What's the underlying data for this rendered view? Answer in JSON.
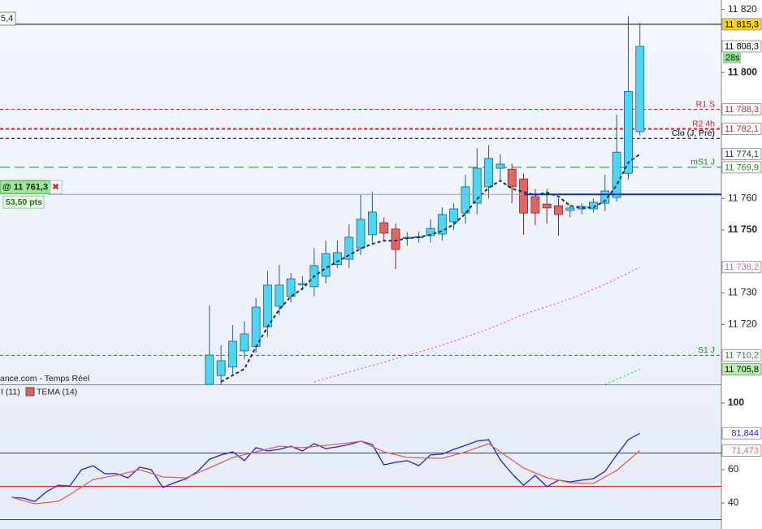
{
  "chart_data": [
    {
      "type": "candlestick",
      "corner_label": "5,4",
      "source": "ance.com - Temps Réel",
      "x": [
        17,
        18,
        19,
        20,
        21,
        22,
        23,
        24,
        25,
        26,
        27,
        28,
        29,
        30,
        31,
        32,
        33,
        34,
        35,
        36,
        37,
        38,
        39,
        40,
        41,
        42,
        43,
        44,
        45,
        46,
        47,
        48,
        49,
        50,
        51,
        52,
        53,
        54
      ],
      "open": [
        11701,
        11703.8,
        11706.5,
        11711.6,
        11713,
        11719.3,
        11725.8,
        11728.9,
        11732.7,
        11732,
        11735.3,
        11739,
        11740.7,
        11744.3,
        11748.5,
        11752.3,
        11750.3,
        11747.4,
        11747.7,
        11748.2,
        11748.7,
        11752.6,
        11755.4,
        11758.5,
        11763.7,
        11769.6,
        11769.3,
        11766.2,
        11760.6,
        11758.2,
        11757.7,
        11756.2,
        11756.7,
        11756.7,
        11758.5,
        11760.3,
        11768,
        11781.2
      ],
      "high": [
        11726,
        11713.4,
        11719.8,
        11721,
        11728.4,
        11737,
        11738.9,
        11736.3,
        11735.3,
        11744.3,
        11746.6,
        11746.6,
        11751.8,
        11761.1,
        11762.1,
        11754,
        11752,
        11749.3,
        11749.5,
        11753.4,
        11757.2,
        11758.5,
        11767.5,
        11776,
        11777,
        11774,
        11771,
        11768,
        11763,
        11763,
        11760,
        11758,
        11758.5,
        11760,
        11767.5,
        11786.6,
        11817.8,
        11815.7
      ],
      "low": [
        11701,
        11701,
        11704,
        11709,
        11711,
        11716,
        11723,
        11727,
        11731,
        11729,
        11733,
        11738,
        11738,
        11742,
        11746,
        11746.4,
        11737.6,
        11745,
        11746,
        11746,
        11746.6,
        11750,
        11752,
        11755,
        11760,
        11766,
        11758.5,
        11748.5,
        11751.5,
        11752,
        11748.2,
        11754,
        11755,
        11755.5,
        11756,
        11759,
        11766,
        11780
      ],
      "close": [
        11710.3,
        11708.5,
        11714.7,
        11717,
        11725.5,
        11732.5,
        11732.5,
        11734.5,
        11733.0,
        11738.7,
        11742.5,
        11742.8,
        11747.7,
        11753.4,
        11755.7,
        11749,
        11743.8,
        11747.7,
        11747.9,
        11750.5,
        11754.9,
        11756.7,
        11763.7,
        11769.6,
        11772.7,
        11770.9,
        11763.7,
        11755.4,
        11755.4,
        11757,
        11754.9,
        11757.0,
        11757.5,
        11758.8,
        11762.4,
        11774.7,
        11794,
        11808.3
      ],
      "last_label": "11 808,3",
      "countdown": "28s",
      "up_color": "#4dd6f4",
      "down_color": "#e06666",
      "xlim": [
        -1,
        61
      ],
      "ylim": [
        11701,
        11823
      ],
      "yticks": [
        {
          "value": 11820,
          "label": "11 820"
        },
        {
          "value": 11800,
          "label": "11 800"
        },
        {
          "value": 11760,
          "label": "11 760"
        },
        {
          "value": 11750,
          "label": "11 750"
        },
        {
          "value": 11730,
          "label": "11 730"
        },
        {
          "value": 11720,
          "label": "11 720"
        }
      ],
      "series": [
        {
          "color": "#1a3550",
          "style": "dashed",
          "x": [
            18,
            19,
            20,
            21,
            22,
            23,
            24,
            25,
            26,
            27,
            28,
            29,
            30,
            31,
            32,
            33,
            34,
            35,
            36,
            37,
            38,
            39,
            40,
            41,
            42,
            43,
            44,
            45,
            46,
            47,
            48,
            49,
            50,
            51,
            52,
            53,
            54
          ],
          "values": [
            11701.8,
            11703.9,
            11705.9,
            11712.9,
            11719.3,
            11724.7,
            11728.9,
            11731.4,
            11735.3,
            11737.9,
            11740,
            11742,
            11744.1,
            11745.6,
            11746.6,
            11746.6,
            11747.4,
            11747.7,
            11748.5,
            11749.7,
            11751.8,
            11755.2,
            11759.8,
            11763.4,
            11765.7,
            11763.1,
            11762.1,
            11761.1,
            11761.9,
            11760.6,
            11757.7,
            11757,
            11757.2,
            11759.3,
            11764.2,
            11771.4,
            11774.1
          ],
          "last_label": "11 774,1"
        },
        {
          "color": "#ee55cc",
          "style": "dotted",
          "x": [
            26,
            31,
            37,
            41,
            44,
            48,
            51,
            54
          ],
          "values": [
            11701.8,
            11707,
            11713.4,
            11718.6,
            11723.2,
            11728.1,
            11732.7,
            11738.2
          ],
          "last_label": "11 738,2"
        },
        {
          "color": "#44cc44",
          "style": "dotted",
          "x": [
            51,
            54
          ],
          "values": [
            11701,
            11705.8
          ],
          "last_label": "11 705,8"
        }
      ],
      "levels": [
        {
          "value": 11815.3,
          "value_label": "11 815,3",
          "color": "#000000",
          "style": "solid"
        },
        {
          "label": "R1 S",
          "value": 11788.3,
          "value_label": "11 788,3",
          "color": "#e02020",
          "style": "dashed"
        },
        {
          "label": "R2 4h",
          "value": 11782.1,
          "value_label": "11 782,1",
          "color": "#e02020",
          "style": "bold-dashed"
        },
        {
          "label": "Clo (J, Pré)",
          "value": 11779.1,
          "color": "#000000",
          "style": "dashed"
        },
        {
          "label": "mS1 J",
          "value": 11769.9,
          "value_label": "11 769,9",
          "color": "#228822",
          "style": "long-dashed"
        },
        {
          "label": "S1 J",
          "value": 11710.2,
          "value_label": "11 710,2",
          "color": "#228822",
          "style": "dashed"
        }
      ],
      "position": {
        "label": "@ 11 761,3",
        "value": 11761.3,
        "pnl": "53,50 pts",
        "close_icon": "✖"
      }
    },
    {
      "type": "line",
      "ylim": [
        24.4,
        111.2
      ],
      "yticks": [
        100,
        60,
        40
      ],
      "xlim": [
        -1,
        61
      ],
      "levels": [
        {
          "value": 70,
          "color": "#2a3a9a"
        },
        {
          "value": 50,
          "color": "#e02020"
        },
        {
          "value": 30,
          "color": "#2a3a9a"
        }
      ],
      "series": [
        {
          "name": "I (11)",
          "color": "#2222dd",
          "x": [
            0,
            1,
            2,
            3,
            4,
            5,
            6,
            7,
            8,
            9,
            10,
            11,
            12,
            13,
            14,
            15,
            16,
            17,
            18,
            19,
            20,
            21,
            22,
            23,
            24,
            25,
            26,
            27,
            28,
            29,
            30,
            31,
            32,
            33,
            34,
            35,
            36,
            37,
            38,
            39,
            40,
            41,
            42,
            43,
            44,
            45,
            46,
            47,
            48,
            49,
            50,
            51,
            52,
            53,
            54
          ],
          "values": [
            43.4,
            42.9,
            41.0,
            46.8,
            50.7,
            50.2,
            60.0,
            62.4,
            57.6,
            57.6,
            55.1,
            61.5,
            60.0,
            49.3,
            52.2,
            54.6,
            59.0,
            66.3,
            68.8,
            70.7,
            65.4,
            73.2,
            71.2,
            72.2,
            74.1,
            71.2,
            75.6,
            72.7,
            73.7,
            75.1,
            77.1,
            75.1,
            62.9,
            64.4,
            65.4,
            62.4,
            68.8,
            69.3,
            72.2,
            74.6,
            77.1,
            78.0,
            65.9,
            57.6,
            50.7,
            56.6,
            49.8,
            53.7,
            52.7,
            53.7,
            54.6,
            59.0,
            68.8,
            78.0,
            81.844
          ],
          "last_label": "81,844"
        },
        {
          "name": "TEMA (14)",
          "color": "#e06060",
          "x": [
            0,
            2,
            4,
            5,
            7,
            9,
            11,
            13,
            15,
            17,
            19,
            21,
            23,
            25,
            27,
            29,
            30,
            32,
            34,
            37,
            39,
            41,
            42,
            44,
            46,
            48,
            50,
            52,
            54
          ],
          "values": [
            43.4,
            39.5,
            41.0,
            45.0,
            54.1,
            56.6,
            60.0,
            55.6,
            55.1,
            61.0,
            67.3,
            70.7,
            74.1,
            73.2,
            74.6,
            76.1,
            77.1,
            70.7,
            67.3,
            66.8,
            70.7,
            75.6,
            70.7,
            61.0,
            55.1,
            52.2,
            51.7,
            59.5,
            71.473
          ],
          "last_label": "71,473"
        }
      ]
    }
  ]
}
